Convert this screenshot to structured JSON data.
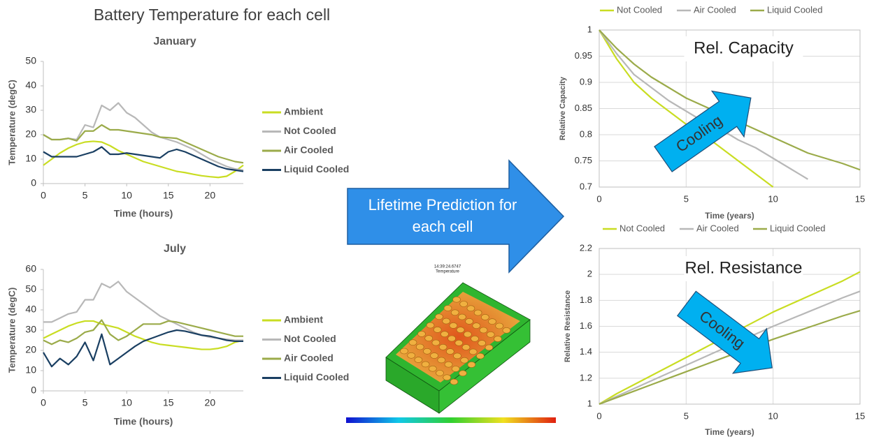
{
  "title": "Battery Temperature for each cell",
  "arrow_label": [
    "Lifetime Prediction for",
    "each cell"
  ],
  "render": {
    "timestamp": "14:39:24.6747",
    "label": "Temperature"
  },
  "chart_data": [
    {
      "type": "line",
      "title": "January",
      "x_label": "Time (hours)",
      "y_label": "Temperature (degC)",
      "x": [
        0,
        1,
        2,
        3,
        4,
        5,
        6,
        7,
        8,
        9,
        10,
        11,
        12,
        13,
        14,
        15,
        16,
        17,
        18,
        19,
        20,
        21,
        22,
        23,
        24
      ],
      "xlim": [
        0,
        24
      ],
      "xticks": [
        0,
        5,
        10,
        15,
        20
      ],
      "ylim": [
        0,
        50
      ],
      "yticks": [
        0,
        10,
        20,
        30,
        40,
        50
      ],
      "grid": false,
      "legend": "right",
      "series": [
        {
          "name": "Ambient",
          "color": "#c9dd22",
          "values": [
            7.5,
            10,
            12.5,
            14.5,
            16,
            17,
            17.3,
            17,
            15.5,
            13.5,
            12,
            10.5,
            9,
            8,
            7,
            6,
            5,
            4.5,
            3.8,
            3.2,
            2.8,
            2.5,
            3,
            5,
            7.5
          ]
        },
        {
          "name": "Not Cooled",
          "color": "#b8b8b8",
          "values": [
            20,
            18,
            18,
            18.5,
            18,
            24,
            23,
            32,
            30,
            33,
            29,
            27,
            24,
            21,
            19,
            18,
            17,
            15.5,
            14,
            12,
            10,
            8.5,
            7,
            6,
            5.5
          ]
        },
        {
          "name": "Air Cooled",
          "color": "#9bab4a",
          "values": [
            20,
            18,
            18,
            18.5,
            17.5,
            21.5,
            21.5,
            24,
            22,
            22,
            21.5,
            21,
            20.5,
            20,
            19,
            18.8,
            18.5,
            17,
            15.5,
            14,
            12.5,
            11,
            10,
            9,
            8.5
          ]
        },
        {
          "name": "Liquid Cooled",
          "color": "#1a3f62",
          "values": [
            13,
            11,
            11,
            11,
            11,
            12,
            13,
            15,
            12,
            12,
            12.5,
            12,
            11.5,
            11,
            10.5,
            13,
            14,
            13,
            11.5,
            10,
            8.5,
            7,
            6,
            5.5,
            5
          ]
        }
      ]
    },
    {
      "type": "line",
      "title": "July",
      "x_label": "Time (hours)",
      "y_label": "Temperature (degC)",
      "x": [
        0,
        1,
        2,
        3,
        4,
        5,
        6,
        7,
        8,
        9,
        10,
        11,
        12,
        13,
        14,
        15,
        16,
        17,
        18,
        19,
        20,
        21,
        22,
        23,
        24
      ],
      "xlim": [
        0,
        24
      ],
      "xticks": [
        0,
        5,
        10,
        15,
        20
      ],
      "ylim": [
        0,
        60
      ],
      "yticks": [
        0,
        10,
        20,
        30,
        40,
        50,
        60
      ],
      "grid": false,
      "legend": "right",
      "series": [
        {
          "name": "Ambient",
          "color": "#c9dd22",
          "values": [
            26,
            28,
            30,
            32,
            33.5,
            34.5,
            34.5,
            33,
            32,
            31,
            29,
            27,
            25.5,
            24,
            23,
            22.5,
            22,
            21.5,
            21,
            20.5,
            20.5,
            21,
            22,
            24,
            25
          ]
        },
        {
          "name": "Not Cooled",
          "color": "#b8b8b8",
          "values": [
            34,
            34,
            36,
            38,
            39,
            45,
            45,
            53,
            51,
            54,
            49,
            46,
            43,
            40,
            37,
            35,
            33,
            31,
            29,
            27.5,
            26.5,
            26,
            25.5,
            25,
            25
          ]
        },
        {
          "name": "Air Cooled",
          "color": "#9bab4a",
          "values": [
            25,
            23,
            25,
            24,
            26,
            29,
            30,
            35,
            28,
            25,
            27,
            30,
            33,
            33,
            33,
            34.5,
            34,
            33,
            32,
            31,
            30,
            29,
            28,
            27,
            27
          ]
        },
        {
          "name": "Liquid Cooled",
          "color": "#1a3f62",
          "values": [
            19,
            12,
            16,
            13,
            17,
            24,
            15,
            28,
            13,
            16,
            19,
            22,
            24.5,
            26,
            27.5,
            29,
            30,
            29.5,
            28.5,
            27.5,
            27,
            26,
            25,
            24.5,
            24.5
          ]
        }
      ]
    },
    {
      "type": "line",
      "title": "Rel. Capacity",
      "annotations": [
        "Cooling"
      ],
      "x_label": "Time (years)",
      "y_label": "Relative Capacity",
      "x": [
        0,
        1,
        2,
        3,
        4,
        5,
        6,
        7,
        8,
        9,
        10,
        11,
        12,
        13,
        14,
        15
      ],
      "xlim": [
        0,
        15
      ],
      "xticks": [
        0,
        5,
        10,
        15
      ],
      "ylim": [
        0.7,
        1
      ],
      "yticks": [
        0.7,
        0.75,
        0.8,
        0.85,
        0.9,
        0.95,
        1
      ],
      "grid": true,
      "legend": "top",
      "series": [
        {
          "name": "Not Cooled",
          "color": "#c9dd22",
          "values": [
            1,
            0.945,
            0.9,
            0.87,
            0.845,
            0.82,
            0.8,
            0.775,
            0.75,
            0.725,
            0.7,
            null,
            null,
            null,
            null,
            null
          ]
        },
        {
          "name": "Air Cooled",
          "color": "#b8b8b8",
          "values": [
            1,
            0.955,
            0.915,
            0.89,
            0.865,
            0.845,
            0.825,
            0.81,
            0.79,
            0.775,
            0.755,
            0.735,
            0.715,
            null,
            null,
            null
          ]
        },
        {
          "name": "Liquid Cooled",
          "color": "#9bab4a",
          "values": [
            1,
            0.965,
            0.935,
            0.91,
            0.89,
            0.87,
            0.855,
            0.84,
            0.825,
            0.81,
            0.795,
            0.78,
            0.765,
            0.755,
            0.745,
            0.733
          ]
        }
      ]
    },
    {
      "type": "line",
      "title": "Rel. Resistance",
      "annotations": [
        "Cooling"
      ],
      "x_label": "Time (years)",
      "y_label": "Relative Resistance",
      "x": [
        0,
        1,
        2,
        3,
        4,
        5,
        6,
        7,
        8,
        9,
        10,
        11,
        12,
        13,
        14,
        15
      ],
      "xlim": [
        0,
        15
      ],
      "xticks": [
        0,
        5,
        10,
        15
      ],
      "ylim": [
        1,
        2.2
      ],
      "yticks": [
        1,
        1.2,
        1.4,
        1.6,
        1.8,
        2,
        2.2
      ],
      "grid": true,
      "legend": "top",
      "series": [
        {
          "name": "Not Cooled",
          "color": "#c9dd22",
          "values": [
            1,
            1.08,
            1.15,
            1.22,
            1.29,
            1.36,
            1.43,
            1.5,
            1.57,
            1.64,
            1.71,
            1.77,
            1.83,
            1.89,
            1.95,
            2.02
          ]
        },
        {
          "name": "Air Cooled",
          "color": "#b8b8b8",
          "values": [
            1,
            1.06,
            1.12,
            1.18,
            1.24,
            1.3,
            1.36,
            1.42,
            1.48,
            1.54,
            1.6,
            1.655,
            1.71,
            1.765,
            1.82,
            1.87
          ]
        },
        {
          "name": "Liquid Cooled",
          "color": "#9bab4a",
          "values": [
            1,
            1.05,
            1.1,
            1.15,
            1.2,
            1.25,
            1.3,
            1.35,
            1.4,
            1.45,
            1.5,
            1.545,
            1.59,
            1.635,
            1.68,
            1.72
          ]
        }
      ]
    }
  ]
}
